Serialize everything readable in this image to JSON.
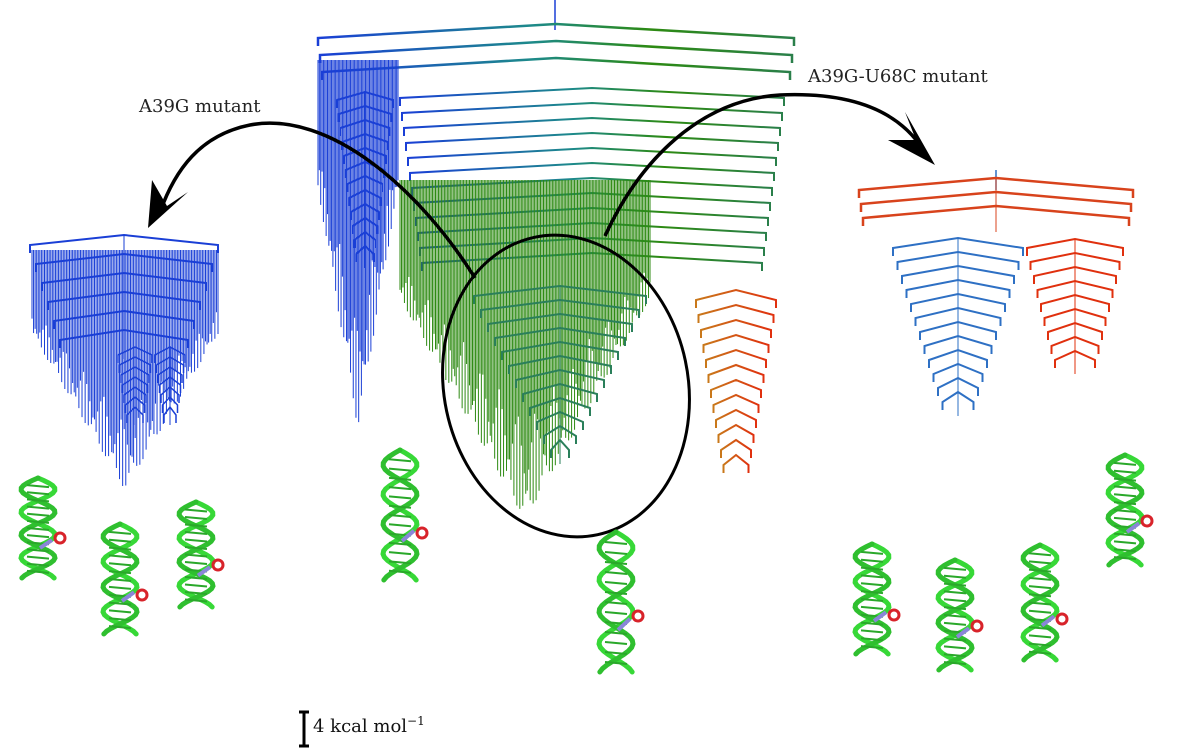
{
  "labels": {
    "left_mutant": "A39G mutant",
    "right_mutant": "A39G-U68C mutant"
  },
  "scale_bar": {
    "text": "4 kcal mol",
    "exponent": "−1"
  },
  "colors": {
    "blue": "#1a3fd6",
    "teal": "#1d8a8a",
    "green": "#2d8a12",
    "orange": "#c9781a",
    "red": "#e0300e",
    "steel_blue": "#2e70c4",
    "rna_green": "#37d837",
    "rna_red": "#d8232a",
    "rna_violet": "#8a86d8",
    "arrow": "#000000"
  },
  "icons": [
    "rna-helix-icon",
    "curved-arrow-icon",
    "scale-bar-icon"
  ]
}
